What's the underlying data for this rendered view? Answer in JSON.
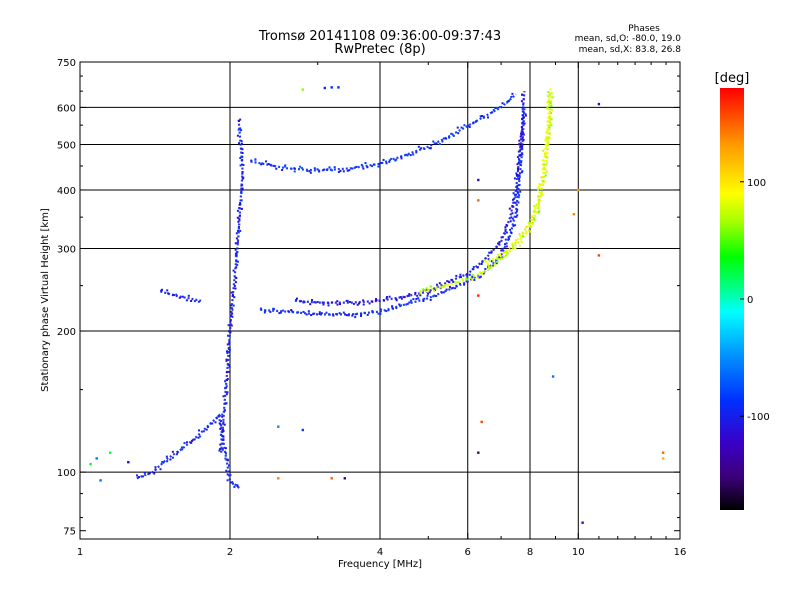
{
  "chart_data": {
    "type": "scatter",
    "title": "Tromsø 20141108 09:36:00-09:37:43",
    "subtitle": "RwPretec (8p)",
    "xlabel": "Frequency [MHz]",
    "ylabel": "Stationary phase Virtual Height [km]",
    "x_scale": "log",
    "y_scale": "log",
    "xlim": [
      1,
      16
    ],
    "ylim": [
      72,
      750
    ],
    "x_ticks": [
      1,
      2,
      4,
      6,
      8,
      10,
      16
    ],
    "y_ticks": [
      75,
      100,
      200,
      300,
      400,
      500,
      600,
      750
    ],
    "x_gridlines": [
      2,
      4,
      6,
      8,
      10
    ],
    "y_gridlines": [
      100,
      200,
      300,
      400,
      500,
      600
    ],
    "grid": true,
    "legend": {
      "title": "Phases",
      "lines": [
        "mean, sd,O: -80.0, 19.0",
        "mean, sd,X:  83.8, 26.8"
      ]
    },
    "colorbar": {
      "label": "[deg]",
      "min": -180,
      "max": 180,
      "ticks": [
        100,
        0,
        -100
      ],
      "colors": [
        "#000000",
        "#3c007a",
        "#3a00c8",
        "#0030ff",
        "#008cff",
        "#00ffff",
        "#00ff80",
        "#00ff00",
        "#a0ff00",
        "#ffff00",
        "#ff9600",
        "#ff0000"
      ],
      "stops": [
        0,
        0.08,
        0.16,
        0.26,
        0.36,
        0.47,
        0.53,
        0.6,
        0.68,
        0.75,
        0.87,
        1
      ]
    },
    "traces": [
      {
        "name": "o-mode-lower",
        "phase": -95,
        "points": [
          [
            2.3,
            222
          ],
          [
            2.6,
            220
          ],
          [
            3.0,
            217
          ],
          [
            3.5,
            217
          ],
          [
            4.0,
            220
          ],
          [
            4.5,
            228
          ],
          [
            5.0,
            235
          ],
          [
            5.5,
            245
          ],
          [
            6.0,
            255
          ],
          [
            6.5,
            268
          ],
          [
            7.0,
            290
          ],
          [
            7.3,
            320
          ],
          [
            7.5,
            360
          ],
          [
            7.6,
            410
          ],
          [
            7.7,
            470
          ],
          [
            7.75,
            530
          ],
          [
            7.8,
            600
          ]
        ]
      },
      {
        "name": "o-mode-upper",
        "phase": -105,
        "points": [
          [
            2.7,
            232
          ],
          [
            3.0,
            230
          ],
          [
            3.5,
            230
          ],
          [
            4.0,
            232
          ],
          [
            4.5,
            237
          ],
          [
            5.0,
            243
          ],
          [
            5.5,
            255
          ],
          [
            6.0,
            265
          ],
          [
            6.5,
            285
          ],
          [
            7.0,
            310
          ],
          [
            7.3,
            350
          ],
          [
            7.5,
            400
          ],
          [
            7.6,
            460
          ],
          [
            7.7,
            530
          ],
          [
            7.75,
            600
          ],
          [
            7.8,
            650
          ]
        ]
      },
      {
        "name": "x-mode-lower",
        "phase": 75,
        "points": [
          [
            4.8,
            243
          ],
          [
            5.3,
            248
          ],
          [
            6.0,
            258
          ],
          [
            6.5,
            268
          ],
          [
            7.0,
            285
          ],
          [
            7.5,
            305
          ],
          [
            8.0,
            330
          ],
          [
            8.3,
            365
          ],
          [
            8.5,
            410
          ],
          [
            8.65,
            470
          ],
          [
            8.75,
            540
          ],
          [
            8.8,
            600
          ],
          [
            8.85,
            650
          ]
        ]
      },
      {
        "name": "x-mode-upper",
        "phase": 85,
        "points": [
          [
            6.5,
            280
          ],
          [
            7.0,
            290
          ],
          [
            7.5,
            310
          ],
          [
            8.0,
            340
          ],
          [
            8.3,
            380
          ],
          [
            8.5,
            430
          ],
          [
            8.6,
            500
          ],
          [
            8.7,
            560
          ],
          [
            8.75,
            620
          ],
          [
            8.8,
            660
          ]
        ]
      },
      {
        "name": "f1-layer",
        "phase": -90,
        "points": [
          [
            2.2,
            460
          ],
          [
            2.6,
            445
          ],
          [
            3.0,
            440
          ],
          [
            3.5,
            445
          ],
          [
            4.0,
            455
          ],
          [
            4.5,
            475
          ],
          [
            5.0,
            495
          ],
          [
            5.5,
            520
          ],
          [
            6.0,
            548
          ],
          [
            6.5,
            575
          ],
          [
            7.0,
            600
          ],
          [
            7.5,
            640
          ]
        ]
      },
      {
        "name": "spread-column",
        "phase": -100,
        "points": [
          [
            1.92,
            110
          ],
          [
            1.95,
            140
          ],
          [
            1.98,
            170
          ],
          [
            2.0,
            200
          ],
          [
            2.02,
            230
          ],
          [
            2.05,
            270
          ],
          [
            2.08,
            320
          ],
          [
            2.1,
            380
          ],
          [
            2.12,
            440
          ],
          [
            2.1,
            500
          ],
          [
            2.08,
            570
          ]
        ]
      },
      {
        "name": "low-frequency",
        "phase": -95,
        "points": [
          [
            1.3,
            97
          ],
          [
            1.4,
            100
          ],
          [
            1.5,
            107
          ],
          [
            1.6,
            112
          ],
          [
            1.7,
            118
          ],
          [
            1.8,
            125
          ],
          [
            1.9,
            132
          ],
          [
            2.0,
            96
          ],
          [
            2.1,
            92
          ]
        ]
      },
      {
        "name": "sporadic-trace",
        "phase": -100,
        "points": [
          [
            1.45,
            243
          ],
          [
            1.55,
            238
          ],
          [
            1.65,
            235
          ],
          [
            1.75,
            232
          ]
        ]
      }
    ],
    "points": [
      {
        "x": 3.1,
        "y": 660,
        "phase": -90
      },
      {
        "x": 3.2,
        "y": 662,
        "phase": -90
      },
      {
        "x": 3.3,
        "y": 662,
        "phase": -90
      },
      {
        "x": 2.8,
        "y": 655,
        "phase": 60
      },
      {
        "x": 11.0,
        "y": 610,
        "phase": -120
      },
      {
        "x": 11.0,
        "y": 290,
        "phase": 160
      },
      {
        "x": 10.0,
        "y": 400,
        "phase": 130
      },
      {
        "x": 9.8,
        "y": 355,
        "phase": 140
      },
      {
        "x": 6.3,
        "y": 420,
        "phase": -110
      },
      {
        "x": 6.3,
        "y": 380,
        "phase": 150
      },
      {
        "x": 6.3,
        "y": 238,
        "phase": 170
      },
      {
        "x": 6.4,
        "y": 128,
        "phase": 160
      },
      {
        "x": 6.3,
        "y": 110,
        "phase": -150
      },
      {
        "x": 8.9,
        "y": 160,
        "phase": -60
      },
      {
        "x": 10.2,
        "y": 78,
        "phase": -120
      },
      {
        "x": 14.8,
        "y": 110,
        "phase": 150
      },
      {
        "x": 14.8,
        "y": 107,
        "phase": 120
      },
      {
        "x": 3.2,
        "y": 97,
        "phase": 150
      },
      {
        "x": 3.4,
        "y": 97,
        "phase": -150
      },
      {
        "x": 2.5,
        "y": 97,
        "phase": 140
      },
      {
        "x": 1.05,
        "y": 104,
        "phase": 30
      },
      {
        "x": 1.08,
        "y": 107,
        "phase": -60
      },
      {
        "x": 1.15,
        "y": 110,
        "phase": 20
      },
      {
        "x": 1.25,
        "y": 105,
        "phase": -120
      },
      {
        "x": 1.1,
        "y": 96,
        "phase": -60
      },
      {
        "x": 2.5,
        "y": 125,
        "phase": -50
      },
      {
        "x": 2.8,
        "y": 123,
        "phase": -80
      }
    ]
  }
}
